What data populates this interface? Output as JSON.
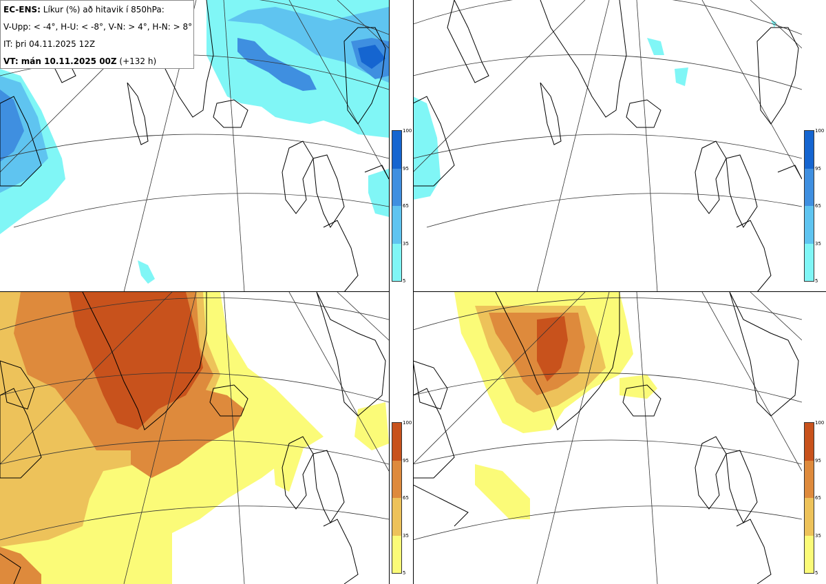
{
  "legend": {
    "line1_bold": "EC-ENS:",
    "line1_rest": " Líkur (%) að hitavik í 850hPa:",
    "line2": "V-Upp: < -4°, H-U: < -8°, V-N: > 4°, H-N: > 8°",
    "line3": "IT: þri 04.11.2025 12Z",
    "line4_bold": "VT: mán 10.11.2025 00Z",
    "line4_rest": " (+132 h)"
  },
  "colorbar_cold": {
    "ticks": [
      "100",
      "95",
      "65",
      "35",
      "5"
    ],
    "colors": [
      "#1565d0",
      "#3f8fe0",
      "#5fc4f0",
      "#80f6f6"
    ]
  },
  "colorbar_warm": {
    "ticks": [
      "100",
      "95",
      "65",
      "35",
      "5"
    ],
    "colors": [
      "#c8521c",
      "#de8a3c",
      "#edc25a",
      "#fbfb78"
    ]
  },
  "panels": [
    {
      "name": "V-Upp",
      "theme": "cold"
    },
    {
      "name": "H-U",
      "theme": "cold"
    },
    {
      "name": "V-N",
      "theme": "warm"
    },
    {
      "name": "H-N",
      "theme": "warm"
    }
  ]
}
